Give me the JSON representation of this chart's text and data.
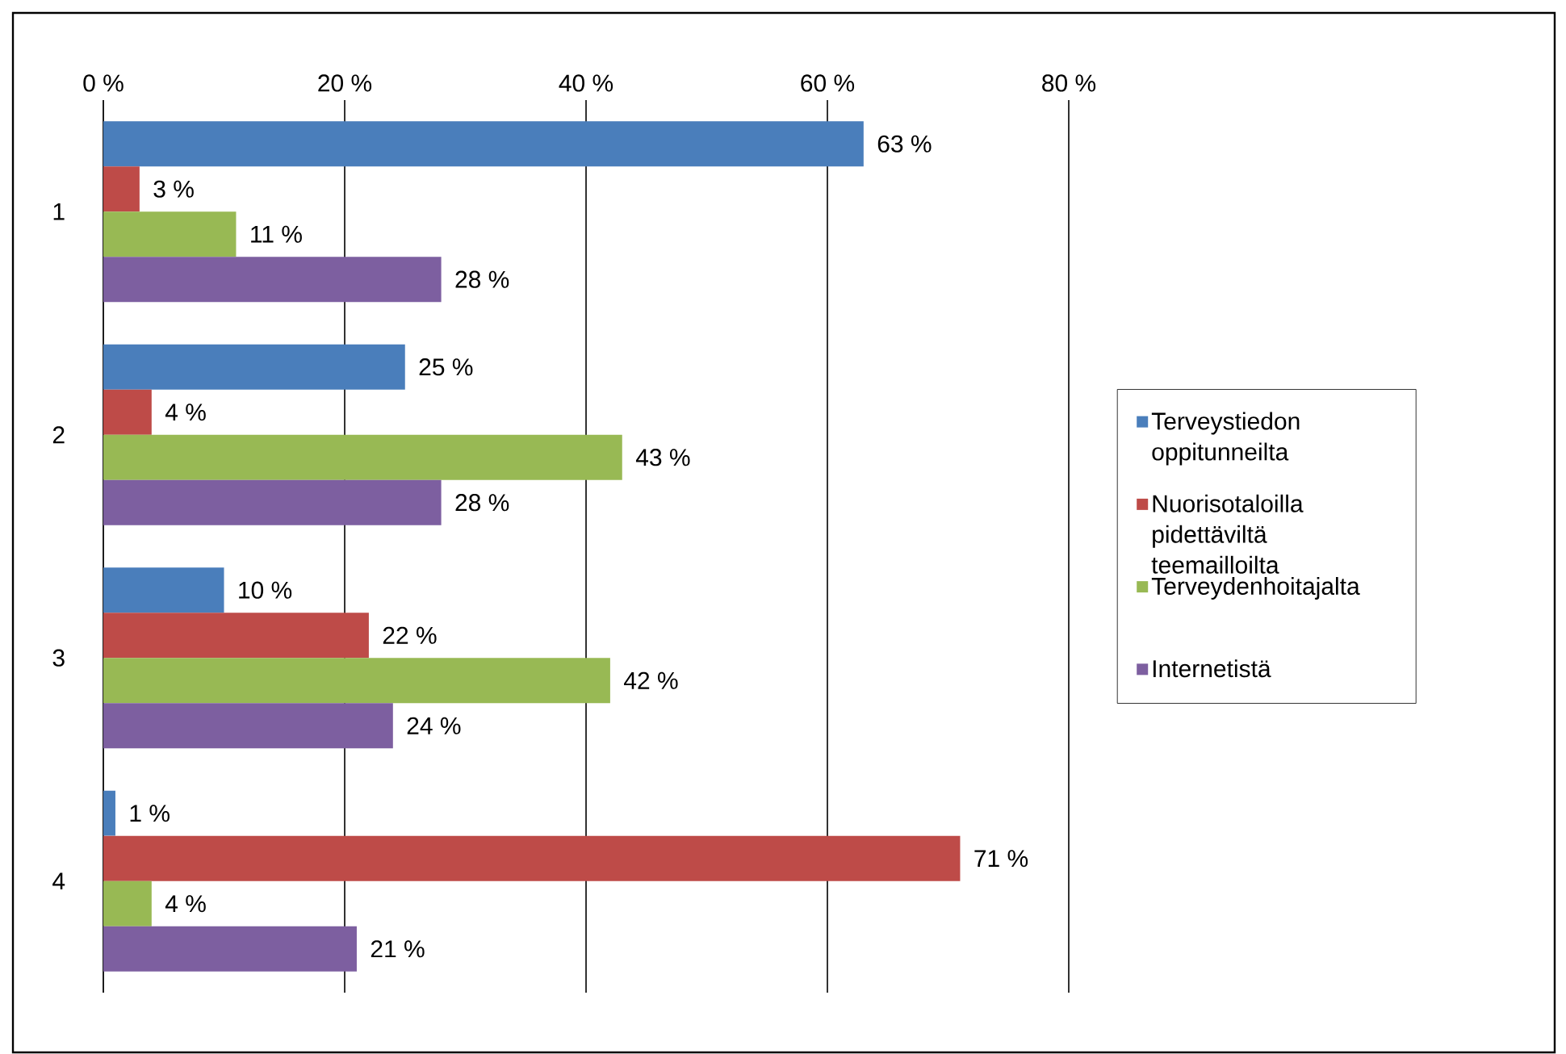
{
  "chart_data": {
    "type": "bar",
    "orientation": "horizontal",
    "categories": [
      "1",
      "2",
      "3",
      "4"
    ],
    "series": [
      {
        "name": "Terveystiedon oppitunneilta",
        "color": "#4a7ebb",
        "values": [
          63,
          25,
          10,
          1
        ],
        "value_labels": [
          "63 %",
          "25 %",
          "10 %",
          "1 %"
        ]
      },
      {
        "name": "Nuorisotaloilla pidettäviltä teemailloilta",
        "color": "#be4b48",
        "values": [
          3,
          4,
          22,
          71
        ],
        "value_labels": [
          "3 %",
          "4 %",
          "22 %",
          "71 %"
        ]
      },
      {
        "name": "Terveydenhoitajalta",
        "color": "#98b954",
        "values": [
          11,
          43,
          42,
          4
        ],
        "value_labels": [
          "11 %",
          "43 %",
          "42 %",
          "4 %"
        ]
      },
      {
        "name": "Internetistä",
        "color": "#7d5fa0",
        "values": [
          28,
          28,
          24,
          21
        ],
        "value_labels": [
          "28 %",
          "28 %",
          "24 %",
          "21 %"
        ]
      }
    ],
    "xlim": [
      0,
      80
    ],
    "xticks": [
      {
        "value": 0,
        "label": "0 %"
      },
      {
        "value": 20,
        "label": "20 %"
      },
      {
        "value": 40,
        "label": "40 %"
      },
      {
        "value": 60,
        "label": "60 %"
      },
      {
        "value": 80,
        "label": "80 %"
      }
    ],
    "grid": "x",
    "legend": "right"
  }
}
